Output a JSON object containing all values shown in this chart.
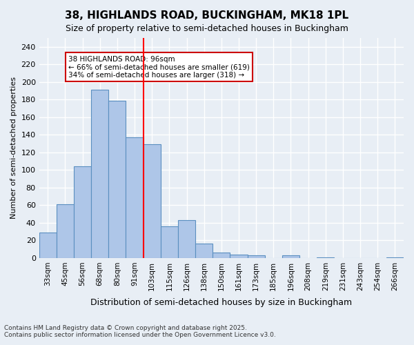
{
  "title_line1": "38, HIGHLANDS ROAD, BUCKINGHAM, MK18 1PL",
  "title_line2": "Size of property relative to semi-detached houses in Buckingham",
  "xlabel": "Distribution of semi-detached houses by size in Buckingham",
  "ylabel": "Number of semi-detached properties",
  "categories": [
    "33sqm",
    "45sqm",
    "56sqm",
    "68sqm",
    "80sqm",
    "91sqm",
    "103sqm",
    "115sqm",
    "126sqm",
    "138sqm",
    "150sqm",
    "161sqm",
    "173sqm",
    "185sqm",
    "196sqm",
    "208sqm",
    "219sqm",
    "231sqm",
    "243sqm",
    "254sqm",
    "266sqm"
  ],
  "values": [
    29,
    61,
    104,
    191,
    179,
    137,
    129,
    36,
    43,
    16,
    6,
    4,
    3,
    0,
    3,
    0,
    1,
    0,
    0,
    0,
    1
  ],
  "bar_color": "#aec6e8",
  "bar_edge_color": "#5a8fc0",
  "background_color": "#e8eef5",
  "grid_color": "#ffffff",
  "ylim": [
    0,
    250
  ],
  "yticks": [
    0,
    20,
    40,
    60,
    80,
    100,
    120,
    140,
    160,
    180,
    200,
    220,
    240
  ],
  "property_size": 96,
  "property_label": "38 HIGHLANDS ROAD: 96sqm",
  "pct_smaller": 66,
  "count_smaller": 619,
  "pct_larger": 34,
  "count_larger": 318,
  "vline_category_index": 5,
  "annotation_box_color": "#ffffff",
  "annotation_box_edge": "#cc0000",
  "footnote": "Contains HM Land Registry data © Crown copyright and database right 2025.\nContains public sector information licensed under the Open Government Licence v3.0."
}
